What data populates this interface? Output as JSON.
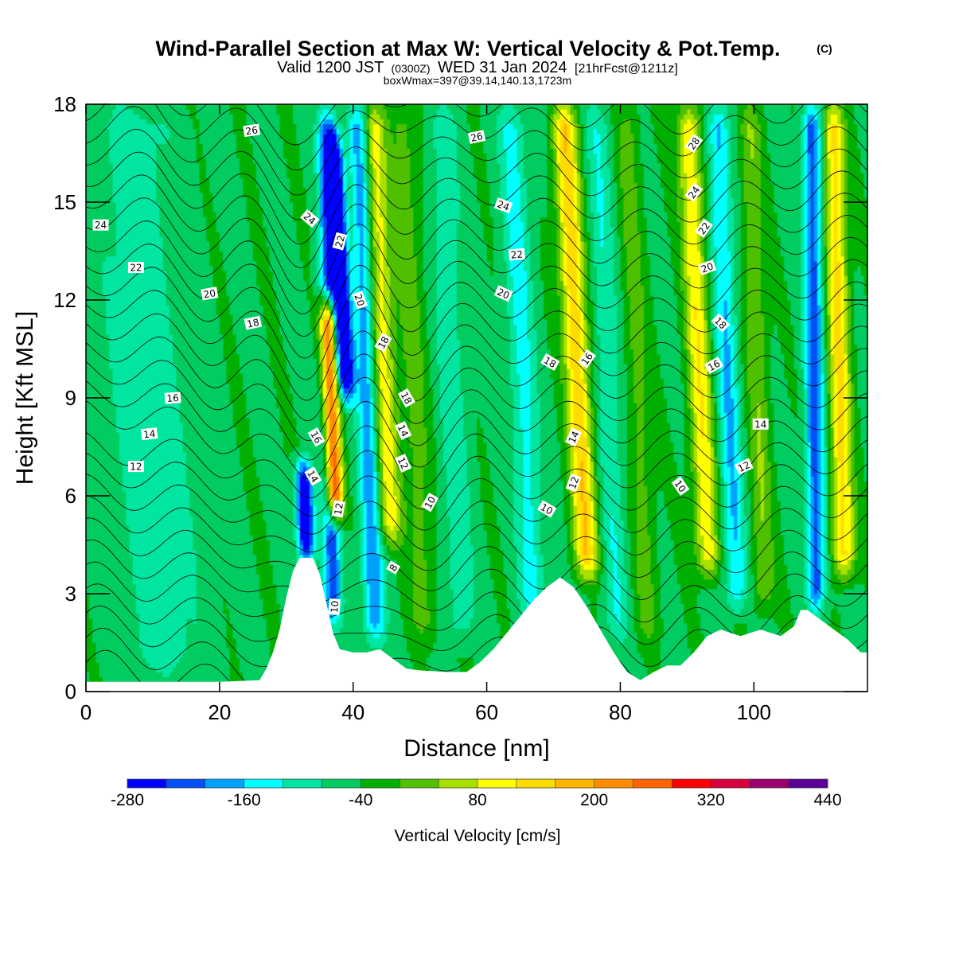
{
  "header": {
    "title": "Wind-Parallel Section at Max W: Vertical Velocity & Pot.Temp.",
    "copyright": "(C)",
    "valid_prefix": "Valid 1200 JST",
    "valid_utc": "(0300Z)",
    "valid_date": "WED 31 Jan 2024",
    "forecast": "[21hrFcst@1211z]",
    "box_info": "boxWmax=397@39.14,140.13,1723m"
  },
  "chart_data": {
    "type": "heatmap",
    "xlabel": "Distance [nm]",
    "ylabel": "Height [Kft MSL]",
    "xlim": [
      0,
      117
    ],
    "ylim": [
      0,
      18
    ],
    "x_ticks": [
      0,
      20,
      40,
      60,
      80,
      100
    ],
    "x_tick_labels": [
      "0",
      "20",
      "40",
      "60",
      "80",
      "100"
    ],
    "y_ticks": [
      0,
      3,
      6,
      9,
      12,
      15,
      18
    ],
    "y_tick_labels": [
      "0",
      "3",
      "6",
      "9",
      "12",
      "15",
      "18"
    ],
    "colorbar": {
      "label": "Vertical Velocity [cm/s]",
      "bounds": [
        -280,
        440
      ],
      "step": 40,
      "tick_labels": [
        "-280",
        "-160",
        "-40",
        "80",
        "200",
        "320",
        "440"
      ],
      "colors": [
        "#0000ff",
        "#0050f5",
        "#00a0ff",
        "#00ffff",
        "#00e6a0",
        "#00cc60",
        "#00b000",
        "#50c000",
        "#a8e000",
        "#ffff00",
        "#ffdc00",
        "#ffb400",
        "#ff8c00",
        "#ff6400",
        "#ff0000",
        "#d7003c",
        "#9b006e",
        "#5a0096"
      ]
    },
    "terrain": [
      [
        0,
        0.3
      ],
      [
        20,
        0.3
      ],
      [
        26,
        0.35
      ],
      [
        27,
        0.7
      ],
      [
        28,
        1.2
      ],
      [
        29,
        1.9
      ],
      [
        30,
        2.9
      ],
      [
        31,
        3.7
      ],
      [
        32,
        4.1
      ],
      [
        34,
        4.1
      ],
      [
        35,
        3.6
      ],
      [
        36,
        2.7
      ],
      [
        37,
        1.8
      ],
      [
        38,
        1.3
      ],
      [
        40,
        1.2
      ],
      [
        42,
        1.2
      ],
      [
        44,
        1.3
      ],
      [
        46,
        1.0
      ],
      [
        48,
        0.7
      ],
      [
        50,
        0.65
      ],
      [
        54,
        0.6
      ],
      [
        57,
        0.6
      ],
      [
        59,
        0.9
      ],
      [
        61,
        1.3
      ],
      [
        63,
        1.8
      ],
      [
        65,
        2.3
      ],
      [
        67,
        2.8
      ],
      [
        69,
        3.2
      ],
      [
        71,
        3.5
      ],
      [
        73,
        3.2
      ],
      [
        75,
        2.6
      ],
      [
        77,
        1.9
      ],
      [
        79,
        1.2
      ],
      [
        81,
        0.6
      ],
      [
        83,
        0.35
      ],
      [
        85,
        0.6
      ],
      [
        87,
        0.8
      ],
      [
        89,
        0.8
      ],
      [
        91,
        1.2
      ],
      [
        93,
        1.7
      ],
      [
        95,
        1.9
      ],
      [
        98,
        1.7
      ],
      [
        101,
        1.9
      ],
      [
        104,
        1.7
      ],
      [
        106,
        2.0
      ],
      [
        107,
        2.5
      ],
      [
        108,
        2.5
      ],
      [
        110,
        2.2
      ],
      [
        112,
        1.9
      ],
      [
        114,
        1.6
      ],
      [
        116,
        1.2
      ],
      [
        117,
        1.2
      ]
    ],
    "w_features": [
      {
        "x0": 38.3,
        "slope": -0.18,
        "amp": 440,
        "width": 1.2,
        "y_low": 4.8,
        "y_high": 12.5
      },
      {
        "x0": 33.8,
        "slope": -0.18,
        "amp": -300,
        "width": 1.2,
        "y_low": 3.5,
        "y_high": 7.5
      },
      {
        "x0": 41.4,
        "slope": -0.26,
        "amp": -300,
        "width": 1.3,
        "y_low": 8.5,
        "y_high": 17.5
      },
      {
        "x0": 37.0,
        "slope": -0.05,
        "amp": -170,
        "width": 1.4,
        "y_low": 1.5,
        "y_high": 18.5
      },
      {
        "x0": 43.5,
        "slope": -0.15,
        "amp": -150,
        "width": 1.6,
        "y_low": 1.0,
        "y_high": 18.5
      },
      {
        "x0": 46.5,
        "slope": -0.2,
        "amp": 150,
        "width": 1.8,
        "y_low": 4.0,
        "y_high": 18.5
      },
      {
        "x0": 51.0,
        "slope": -0.2,
        "amp": 60,
        "width": 2.0,
        "y_low": 1.0,
        "y_high": 18.5
      },
      {
        "x0": 56.5,
        "slope": -0.18,
        "amp": -60,
        "width": 2.2,
        "y_low": 1.0,
        "y_high": 18.5
      },
      {
        "x0": 67.5,
        "slope": -0.22,
        "amp": -90,
        "width": 2.0,
        "y_low": 1.0,
        "y_high": 18.5
      },
      {
        "x0": 76.0,
        "slope": -0.25,
        "amp": 200,
        "width": 1.8,
        "y_low": 3.0,
        "y_high": 18.5
      },
      {
        "x0": 80.0,
        "slope": -0.2,
        "amp": -70,
        "width": 1.8,
        "y_low": 1.0,
        "y_high": 18.5
      },
      {
        "x0": 84.5,
        "slope": -0.2,
        "amp": 60,
        "width": 1.7,
        "y_low": 1.0,
        "y_high": 18.5
      },
      {
        "x0": 94.0,
        "slope": -0.22,
        "amp": 160,
        "width": 1.7,
        "y_low": 3.0,
        "y_high": 18.5
      },
      {
        "x0": 98.0,
        "slope": -0.2,
        "amp": -120,
        "width": 1.6,
        "y_low": 2.0,
        "y_high": 18.5
      },
      {
        "x0": 102.0,
        "slope": -0.15,
        "amp": 80,
        "width": 1.6,
        "y_low": 2.0,
        "y_high": 18.5
      },
      {
        "x0": 109.5,
        "slope": -0.05,
        "amp": -180,
        "width": 1.4,
        "y_low": 2.0,
        "y_high": 18.5
      },
      {
        "x0": 114.0,
        "slope": -0.12,
        "amp": 180,
        "width": 1.6,
        "y_low": 3.0,
        "y_high": 18.5
      },
      {
        "x0": 12.0,
        "slope": -0.3,
        "amp": -60,
        "width": 6.0,
        "y_low": 0,
        "y_high": 18.5
      }
    ],
    "theta_levels": {
      "start": 2,
      "end": 28,
      "step": 1
    },
    "contour_labels": [
      {
        "text": "26",
        "x": 24.8,
        "y": 17.2,
        "angle": -8
      },
      {
        "text": "24",
        "x": 2.2,
        "y": 14.3,
        "angle": 0
      },
      {
        "text": "22",
        "x": 7.5,
        "y": 13.0,
        "angle": 0
      },
      {
        "text": "20",
        "x": 18.5,
        "y": 12.2,
        "angle": -10
      },
      {
        "text": "18",
        "x": 25.0,
        "y": 11.3,
        "angle": -12
      },
      {
        "text": "16",
        "x": 13.0,
        "y": 9.0,
        "angle": -4
      },
      {
        "text": "14",
        "x": 9.5,
        "y": 7.9,
        "angle": -6
      },
      {
        "text": "12",
        "x": 7.5,
        "y": 6.9,
        "angle": 0
      },
      {
        "text": "24",
        "x": 33.5,
        "y": 14.5,
        "angle": 40
      },
      {
        "text": "22",
        "x": 38.0,
        "y": 13.8,
        "angle": -75
      },
      {
        "text": "20",
        "x": 41.0,
        "y": 12.0,
        "angle": 70
      },
      {
        "text": "18",
        "x": 44.5,
        "y": 10.7,
        "angle": -60
      },
      {
        "text": "18",
        "x": 48.0,
        "y": 9.0,
        "angle": 60
      },
      {
        "text": "14",
        "x": 47.5,
        "y": 8.0,
        "angle": 65
      },
      {
        "text": "12",
        "x": 47.5,
        "y": 7.0,
        "angle": 65
      },
      {
        "text": "16",
        "x": 34.5,
        "y": 7.8,
        "angle": 60
      },
      {
        "text": "14",
        "x": 34.0,
        "y": 6.6,
        "angle": 60
      },
      {
        "text": "12",
        "x": 37.8,
        "y": 5.6,
        "angle": -80
      },
      {
        "text": "10",
        "x": 51.5,
        "y": 5.8,
        "angle": -60
      },
      {
        "text": "8",
        "x": 46.0,
        "y": 3.8,
        "angle": -60
      },
      {
        "text": "10",
        "x": 37.2,
        "y": 2.6,
        "angle": -85
      },
      {
        "text": "26",
        "x": 58.5,
        "y": 17.0,
        "angle": -12
      },
      {
        "text": "24",
        "x": 62.5,
        "y": 14.9,
        "angle": 20
      },
      {
        "text": "22",
        "x": 64.5,
        "y": 13.4,
        "angle": -5
      },
      {
        "text": "20",
        "x": 62.5,
        "y": 12.2,
        "angle": 25
      },
      {
        "text": "18",
        "x": 69.5,
        "y": 10.1,
        "angle": 30
      },
      {
        "text": "16",
        "x": 75.0,
        "y": 10.2,
        "angle": -55
      },
      {
        "text": "14",
        "x": 73.0,
        "y": 7.8,
        "angle": -65
      },
      {
        "text": "12",
        "x": 73.0,
        "y": 6.4,
        "angle": -70
      },
      {
        "text": "10",
        "x": 69.0,
        "y": 5.6,
        "angle": 30
      },
      {
        "text": "28",
        "x": 91.0,
        "y": 16.8,
        "angle": -55
      },
      {
        "text": "24",
        "x": 91.0,
        "y": 15.3,
        "angle": -55
      },
      {
        "text": "22",
        "x": 92.5,
        "y": 14.2,
        "angle": -55
      },
      {
        "text": "20",
        "x": 93.0,
        "y": 13.0,
        "angle": -20
      },
      {
        "text": "18",
        "x": 95.0,
        "y": 11.3,
        "angle": 45
      },
      {
        "text": "16",
        "x": 94.0,
        "y": 10.0,
        "angle": -30
      },
      {
        "text": "14",
        "x": 101.0,
        "y": 8.2,
        "angle": 0
      },
      {
        "text": "12",
        "x": 98.5,
        "y": 6.9,
        "angle": -25
      },
      {
        "text": "10",
        "x": 89.0,
        "y": 6.3,
        "angle": 55
      }
    ]
  }
}
